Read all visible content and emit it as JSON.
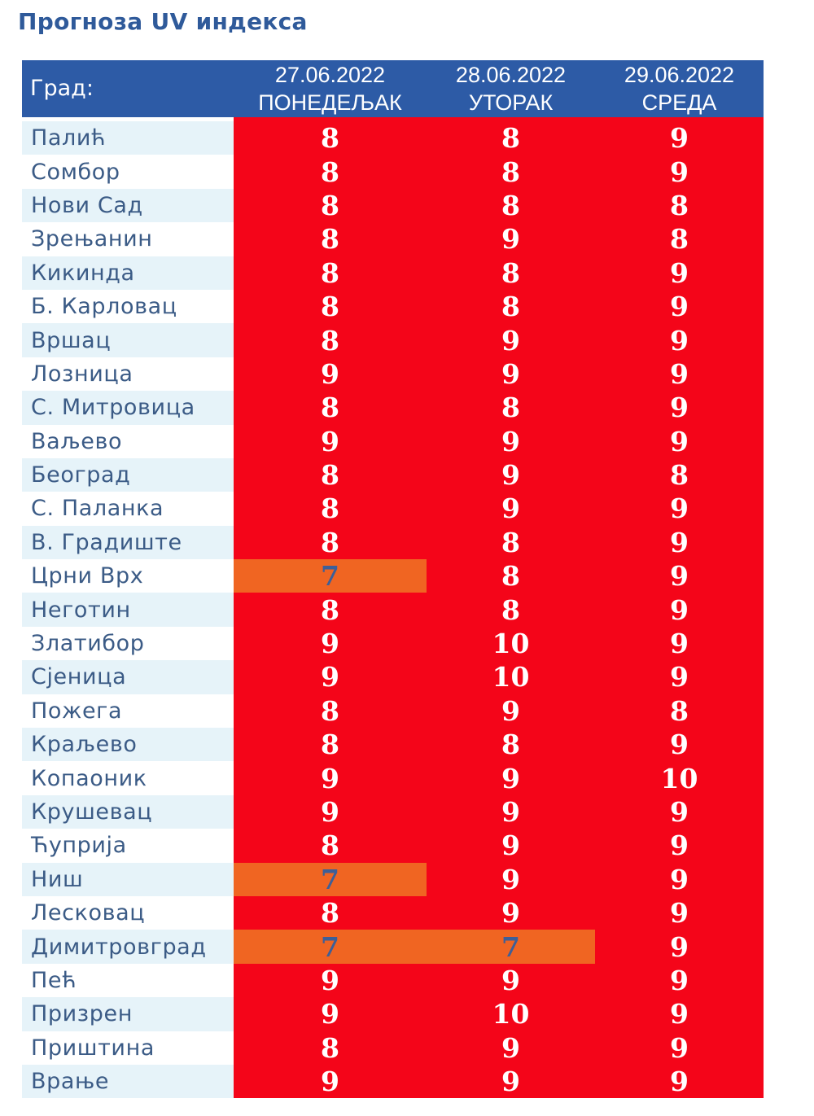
{
  "title": "Прогноза UV индекса",
  "header": {
    "city_label": "Град:",
    "days": [
      {
        "date": "27.06.2022",
        "weekday": "ПОНЕДЕЉАК"
      },
      {
        "date": "28.06.2022",
        "weekday": "УТОРАК"
      },
      {
        "date": "29.06.2022",
        "weekday": "СРЕДА"
      }
    ]
  },
  "colors": {
    "header_bg": "#2d5ba6",
    "very_high": "#f40519",
    "high": "#f06522",
    "city_text": "#3b5b86",
    "title": "#2f5a9a"
  },
  "rows": [
    {
      "city": "Палић",
      "values": [
        8,
        8,
        9
      ]
    },
    {
      "city": "Сомбор",
      "values": [
        8,
        8,
        9
      ]
    },
    {
      "city": "Нови Сад",
      "values": [
        8,
        8,
        8
      ]
    },
    {
      "city": "Зрењанин",
      "values": [
        8,
        9,
        8
      ]
    },
    {
      "city": "Кикинда",
      "values": [
        8,
        8,
        9
      ]
    },
    {
      "city": "Б. Карловац",
      "values": [
        8,
        8,
        9
      ]
    },
    {
      "city": "Вршац",
      "values": [
        8,
        9,
        9
      ]
    },
    {
      "city": "Лозница",
      "values": [
        9,
        9,
        9
      ]
    },
    {
      "city": "С. Митровица",
      "values": [
        8,
        8,
        9
      ]
    },
    {
      "city": "Ваљево",
      "values": [
        9,
        9,
        9
      ]
    },
    {
      "city": "Београд",
      "values": [
        8,
        9,
        8
      ]
    },
    {
      "city": "С. Паланка",
      "values": [
        8,
        9,
        9
      ]
    },
    {
      "city": "В. Градиште",
      "values": [
        8,
        8,
        9
      ]
    },
    {
      "city": "Црни Врх",
      "values": [
        7,
        8,
        9
      ]
    },
    {
      "city": "Неготин",
      "values": [
        8,
        8,
        9
      ]
    },
    {
      "city": "Златибор",
      "values": [
        9,
        10,
        9
      ]
    },
    {
      "city": "Сјеница",
      "values": [
        9,
        10,
        9
      ]
    },
    {
      "city": "Пожега",
      "values": [
        8,
        9,
        8
      ]
    },
    {
      "city": "Краљево",
      "values": [
        8,
        8,
        9
      ]
    },
    {
      "city": "Копаоник",
      "values": [
        9,
        9,
        10
      ]
    },
    {
      "city": "Крушевац",
      "values": [
        9,
        9,
        9
      ]
    },
    {
      "city": "Ћуприја",
      "values": [
        8,
        9,
        9
      ]
    },
    {
      "city": "Ниш",
      "values": [
        7,
        9,
        9
      ]
    },
    {
      "city": "Лесковац",
      "values": [
        8,
        9,
        9
      ]
    },
    {
      "city": "Димитровград",
      "values": [
        7,
        7,
        9
      ]
    },
    {
      "city": "Пећ",
      "values": [
        9,
        9,
        9
      ]
    },
    {
      "city": "Призрен",
      "values": [
        9,
        10,
        9
      ]
    },
    {
      "city": "Приштина",
      "values": [
        8,
        9,
        9
      ]
    },
    {
      "city": "Врање",
      "values": [
        9,
        9,
        9
      ]
    }
  ]
}
